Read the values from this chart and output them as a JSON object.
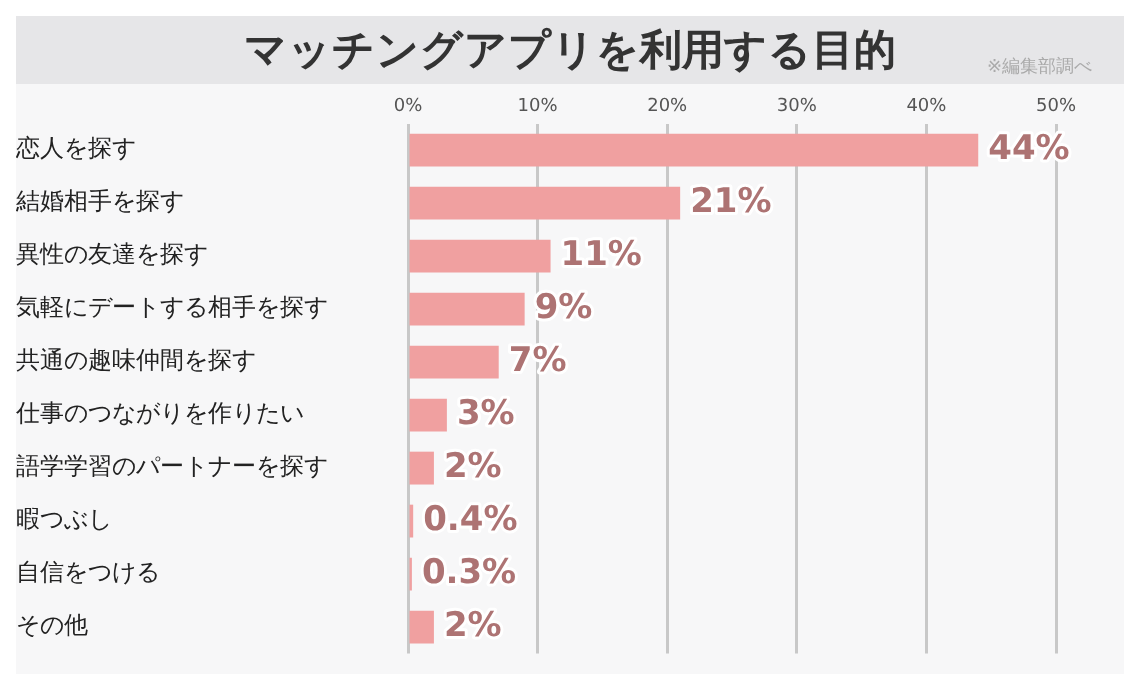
{
  "chart_data": {
    "type": "bar",
    "orientation": "horizontal",
    "title": "マッチングアプリを利用する目的",
    "annotations": [
      "※編集部調べ"
    ],
    "categories": [
      "恋人を探す",
      "結婚相手を探す",
      "異性の友達を探す",
      "気軽にデートする相手を探す",
      "共通の趣味仲間を探す",
      "仕事のつながりを作りたい",
      "語学学習のパートナーを探す",
      "暇つぶし",
      "自信をつける",
      "その他"
    ],
    "values": [
      44,
      21,
      11,
      9,
      7,
      3,
      2,
      0.4,
      0.3,
      2
    ],
    "color": "#f0a0a0",
    "value_labels": [
      "44%",
      "21%",
      "11%",
      "9%",
      "7%",
      "3%",
      "2%",
      "0.4%",
      "0.3%",
      "2%"
    ],
    "xlim": [
      0,
      50
    ],
    "xticks": [
      {
        "value": 0,
        "label": "0%"
      },
      {
        "value": 10,
        "label": "10%"
      },
      {
        "value": 20,
        "label": "20%"
      },
      {
        "value": 30,
        "label": "30%"
      },
      {
        "value": 40,
        "label": "40%"
      },
      {
        "value": 50,
        "label": "50%"
      }
    ],
    "grid": "x",
    "legend": false
  }
}
